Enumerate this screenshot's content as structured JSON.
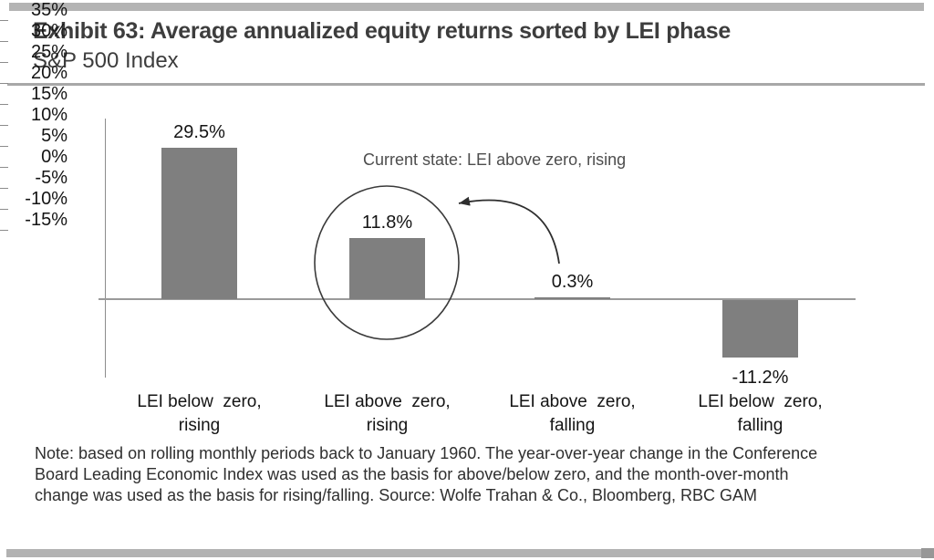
{
  "chart_data": {
    "type": "bar",
    "title": "Exhibit 63: Average annualized equity returns sorted by LEI phase",
    "subtitle": "S&P 500 Index",
    "categories": [
      "LEI below  zero,\nrising",
      "LEI above  zero,\nrising",
      "LEI above  zero,\nfalling",
      "LEI below  zero,\nfalling"
    ],
    "values": [
      29.5,
      11.8,
      0.3,
      -11.2
    ],
    "value_labels": [
      "29.5%",
      "11.8%",
      "0.3%",
      "-11.2%"
    ],
    "ylim": [
      -15,
      35
    ],
    "ytick_step": 5,
    "yticks": [
      "35%",
      "30%",
      "25%",
      "20%",
      "15%",
      "10%",
      "5%",
      "0%",
      "-5%",
      "-10%",
      "-15%"
    ],
    "xlabel": "",
    "ylabel": "",
    "grid": false,
    "legend": false,
    "bar_color": "#7f7f7f",
    "annotation": {
      "text": "Current state: LEI above zero, rising",
      "highlight": "circle drawn around second bar with curved arrow pointing to it"
    }
  },
  "note": "Note: based on rolling monthly periods back to January 1960. The year-over-year change in the Conference\nBoard Leading Economic Index was used as the basis for above/below zero, and the month-over-month\nchange was used as the basis for rising/falling. Source: Wolfe Trahan & Co., Bloomberg, RBC GAM"
}
